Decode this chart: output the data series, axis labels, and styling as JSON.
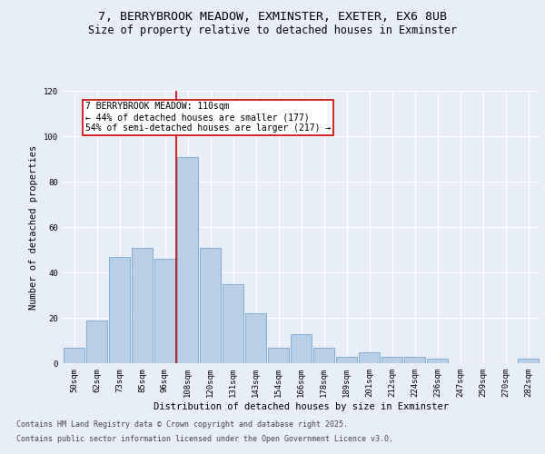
{
  "title_line1": "7, BERRYBROOK MEADOW, EXMINSTER, EXETER, EX6 8UB",
  "title_line2": "Size of property relative to detached houses in Exminster",
  "xlabel": "Distribution of detached houses by size in Exminster",
  "ylabel": "Number of detached properties",
  "footer_line1": "Contains HM Land Registry data © Crown copyright and database right 2025.",
  "footer_line2": "Contains public sector information licensed under the Open Government Licence v3.0.",
  "annotation_title": "7 BERRYBROOK MEADOW: 110sqm",
  "annotation_line2": "← 44% of detached houses are smaller (177)",
  "annotation_line3": "54% of semi-detached houses are larger (217) →",
  "bar_labels": [
    "50sqm",
    "62sqm",
    "73sqm",
    "85sqm",
    "96sqm",
    "108sqm",
    "120sqm",
    "131sqm",
    "143sqm",
    "154sqm",
    "166sqm",
    "178sqm",
    "189sqm",
    "201sqm",
    "212sqm",
    "224sqm",
    "236sqm",
    "247sqm",
    "259sqm",
    "270sqm",
    "282sqm"
  ],
  "bar_values": [
    7,
    19,
    47,
    51,
    46,
    91,
    51,
    35,
    22,
    7,
    13,
    7,
    3,
    5,
    3,
    3,
    2,
    0,
    0,
    0,
    2
  ],
  "bar_color": "#b8cfe8",
  "bar_edgecolor": "#6699cc",
  "vline_color": "#cc0000",
  "annotation_box_color": "#cc0000",
  "bg_color": "#e8eef8",
  "plot_bg_color": "#e8eef8",
  "ylim": [
    0,
    120
  ],
  "yticks": [
    0,
    20,
    40,
    60,
    80,
    100,
    120
  ],
  "grid_color": "#ffffff",
  "title_fontsize": 9.5,
  "subtitle_fontsize": 8.5,
  "axis_label_fontsize": 7.5,
  "tick_fontsize": 6.5,
  "annotation_fontsize": 7,
  "footer_fontsize": 6
}
